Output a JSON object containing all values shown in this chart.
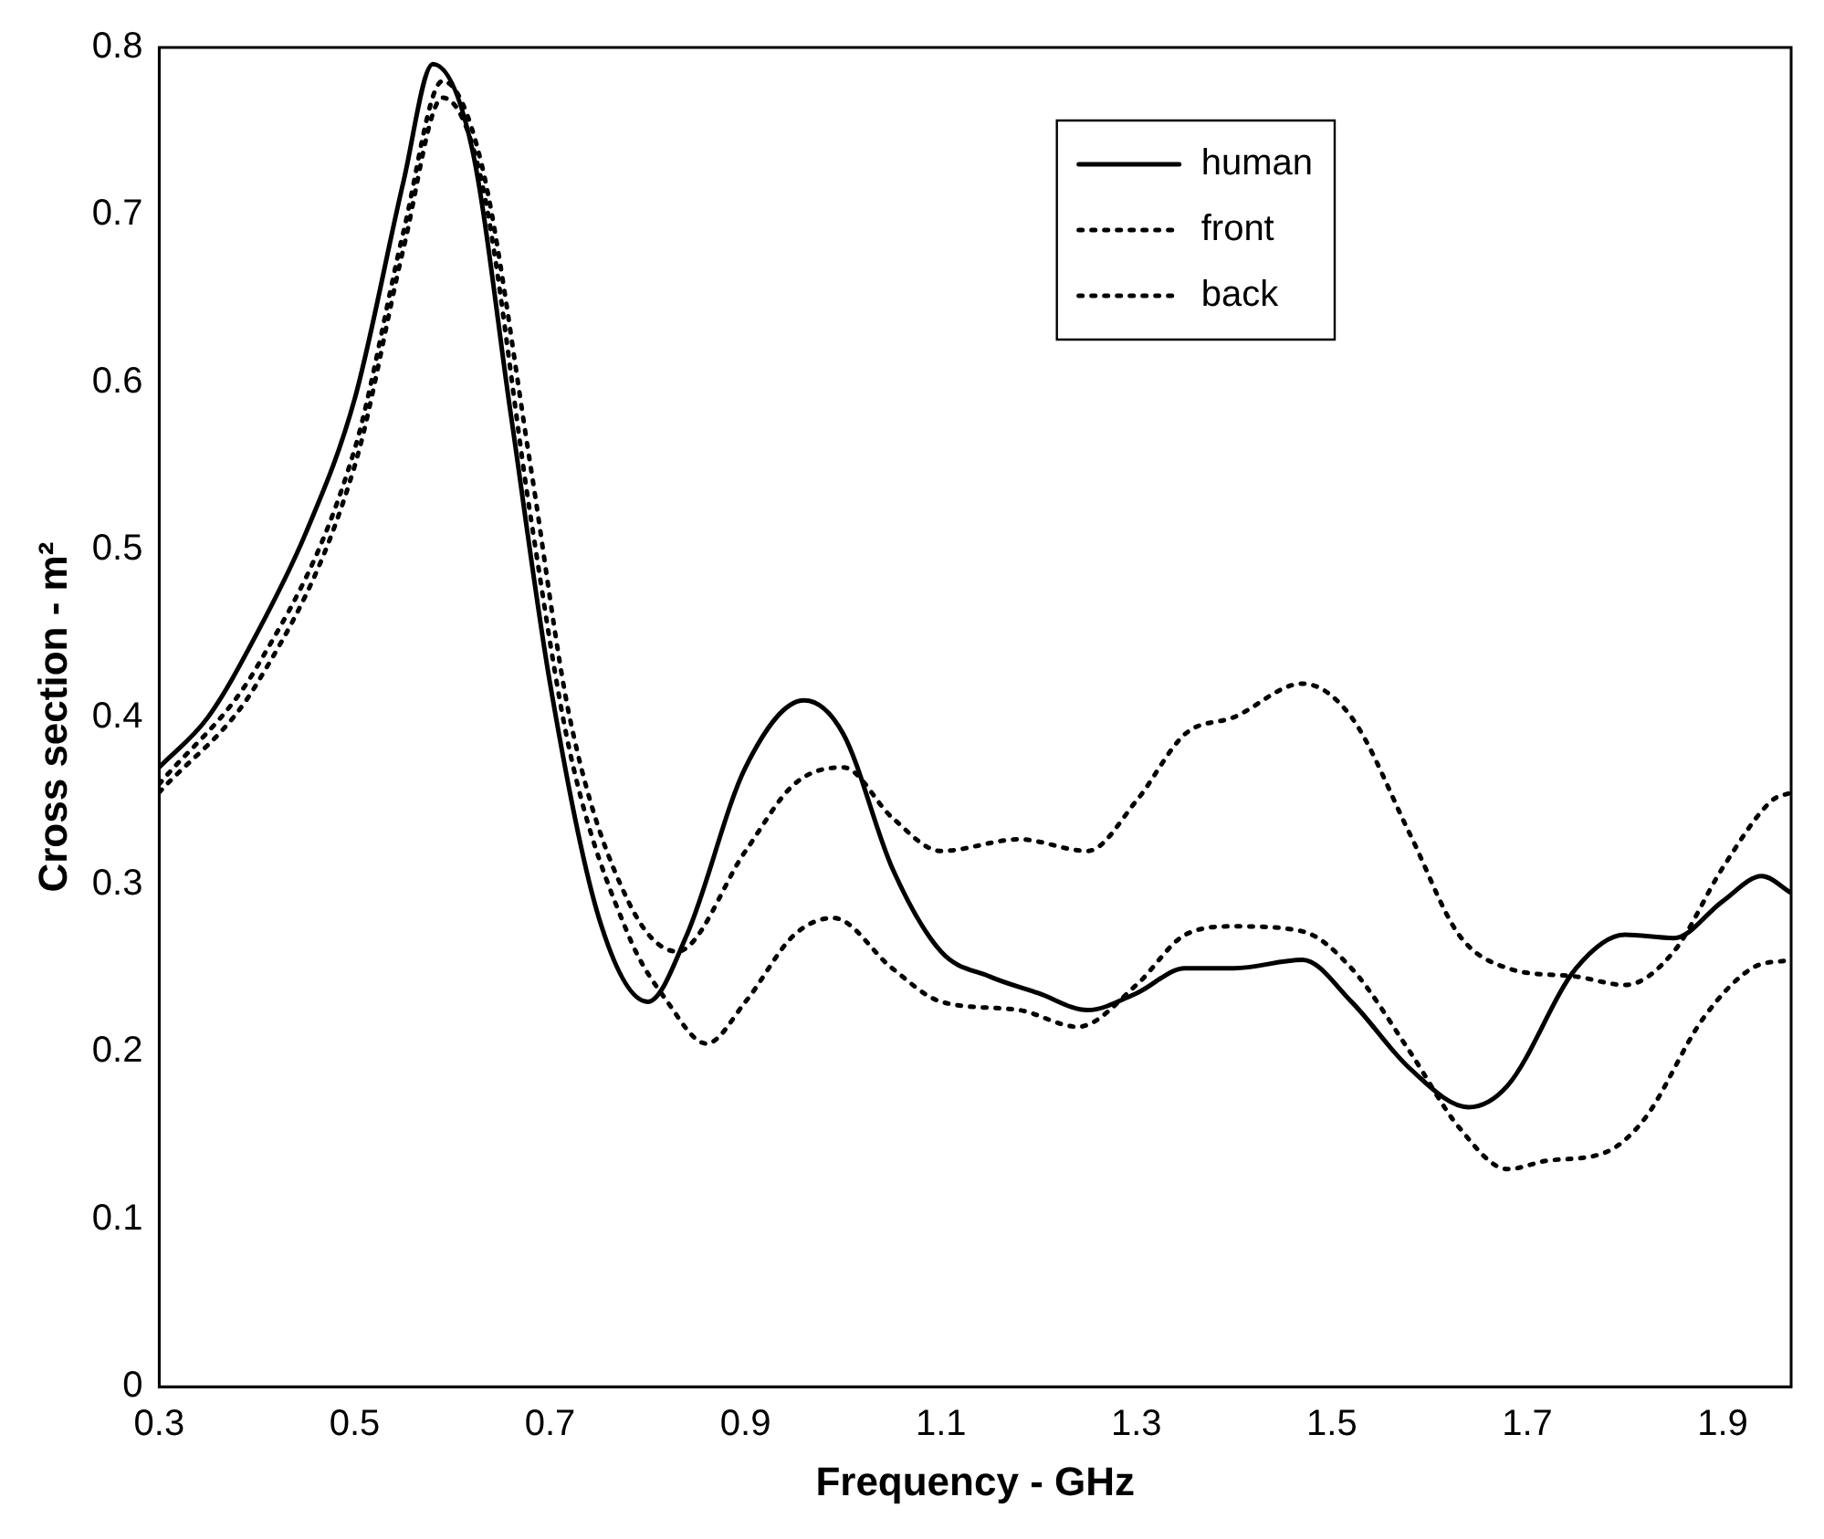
{
  "chart_data": {
    "type": "line",
    "xlabel": "Frequency - GHz",
    "ylabel": "Cross section - m²",
    "xlim": [
      0.3,
      1.97
    ],
    "xticks": [
      0.3,
      0.5,
      0.7,
      0.9,
      1.1,
      1.3,
      1.5,
      1.7,
      1.9
    ],
    "ylim": [
      0,
      0.8
    ],
    "yticks": [
      0,
      0.1,
      0.2,
      0.3,
      0.4,
      0.5,
      0.6,
      0.7,
      0.8
    ],
    "grid": false,
    "legend": "top right",
    "marker": "none",
    "series": [
      {
        "name": "human",
        "color": "#000000",
        "line_style": "solid",
        "x": [
          0.3,
          0.35,
          0.4,
          0.45,
          0.5,
          0.55,
          0.58,
          0.62,
          0.66,
          0.7,
          0.75,
          0.8,
          0.84,
          0.9,
          0.96,
          1.0,
          1.05,
          1.1,
          1.15,
          1.2,
          1.25,
          1.3,
          1.35,
          1.4,
          1.47,
          1.52,
          1.58,
          1.64,
          1.68,
          1.75,
          1.8,
          1.85,
          1.9,
          1.94,
          1.97
        ],
        "values": [
          0.37,
          0.4,
          0.45,
          0.51,
          0.59,
          0.72,
          0.79,
          0.74,
          0.58,
          0.42,
          0.28,
          0.23,
          0.27,
          0.37,
          0.41,
          0.39,
          0.31,
          0.26,
          0.245,
          0.235,
          0.225,
          0.235,
          0.25,
          0.25,
          0.255,
          0.23,
          0.19,
          0.167,
          0.18,
          0.25,
          0.27,
          0.268,
          0.29,
          0.305,
          0.295
        ]
      },
      {
        "name": "front",
        "color": "#000000",
        "line_style": "dotted",
        "x": [
          0.3,
          0.4,
          0.5,
          0.55,
          0.59,
          0.63,
          0.68,
          0.72,
          0.78,
          0.83,
          0.9,
          0.95,
          1.0,
          1.05,
          1.1,
          1.18,
          1.25,
          1.3,
          1.35,
          1.4,
          1.47,
          1.52,
          1.58,
          1.63,
          1.68,
          1.75,
          1.8,
          1.85,
          1.9,
          1.95,
          1.97
        ],
        "values": [
          0.36,
          0.43,
          0.56,
          0.69,
          0.78,
          0.73,
          0.55,
          0.4,
          0.29,
          0.26,
          0.32,
          0.36,
          0.37,
          0.34,
          0.32,
          0.327,
          0.32,
          0.35,
          0.39,
          0.4,
          0.42,
          0.4,
          0.33,
          0.27,
          0.25,
          0.245,
          0.24,
          0.26,
          0.31,
          0.35,
          0.355
        ]
      },
      {
        "name": "back",
        "color": "#000000",
        "line_style": "dotted",
        "x": [
          0.3,
          0.4,
          0.5,
          0.55,
          0.59,
          0.63,
          0.68,
          0.72,
          0.78,
          0.82,
          0.86,
          0.9,
          0.95,
          0.99,
          1.05,
          1.1,
          1.18,
          1.24,
          1.3,
          1.35,
          1.4,
          1.47,
          1.52,
          1.58,
          1.63,
          1.68,
          1.72,
          1.78,
          1.82,
          1.88,
          1.93,
          1.97
        ],
        "values": [
          0.355,
          0.42,
          0.55,
          0.68,
          0.77,
          0.72,
          0.52,
          0.38,
          0.27,
          0.23,
          0.205,
          0.23,
          0.27,
          0.28,
          0.25,
          0.23,
          0.225,
          0.215,
          0.24,
          0.27,
          0.275,
          0.272,
          0.25,
          0.2,
          0.155,
          0.13,
          0.135,
          0.14,
          0.16,
          0.22,
          0.25,
          0.255
        ]
      }
    ]
  }
}
